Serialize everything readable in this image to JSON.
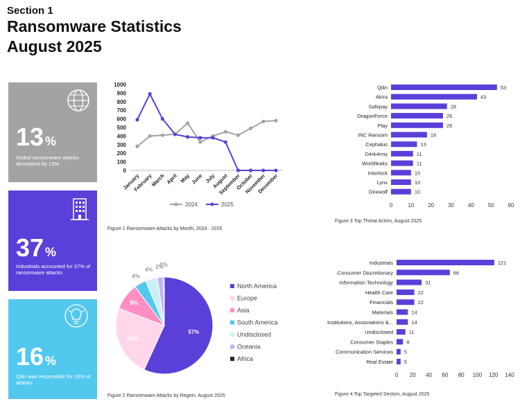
{
  "header": {
    "section": "Section 1",
    "title_line1": "Ransomware Statistics",
    "title_line2": "August 2025"
  },
  "cards": [
    {
      "value": "13",
      "unit": "%",
      "caption": "Global ransomware attacks decreased by 13%",
      "color": "#a3a3a3",
      "icon": "globe-icon"
    },
    {
      "value": "37",
      "unit": "%",
      "caption": "Industrials accounted for 37% of ransomware attacks",
      "color": "#5b3fd9",
      "icon": "building-icon"
    },
    {
      "value": "16",
      "unit": "%",
      "caption": "Qilin was responsible for 16% of attacks",
      "color": "#52c8ee",
      "icon": "lightbulb-icon"
    }
  ],
  "captions": {
    "fig1": "Figure 1 Ransomware Attacks by Month, 2024 - 2025",
    "fig2": "Figure 2 Ransomware Attacks by Region, August 2025",
    "fig3": "Figure 3 Top Threat Actors, August 2025",
    "fig4": "Figure 4 Top Targeted Sectors, August 2025"
  },
  "chart_data": [
    {
      "type": "line",
      "categories": [
        "January",
        "February",
        "March",
        "April",
        "May",
        "June",
        "July",
        "August",
        "September",
        "October",
        "November",
        "December"
      ],
      "series": [
        {
          "name": "2024",
          "color": "#a3a3a3",
          "values": [
            280,
            400,
            410,
            420,
            550,
            330,
            400,
            450,
            410,
            490,
            570,
            580
          ]
        },
        {
          "name": "2025",
          "color": "#5b3fd9",
          "values": [
            590,
            890,
            600,
            420,
            390,
            380,
            380,
            330,
            0,
            0,
            0,
            0
          ]
        }
      ],
      "yticks": [
        0,
        100,
        200,
        300,
        400,
        500,
        600,
        700,
        800,
        900,
        1000
      ],
      "ylim": [
        0,
        1000
      ],
      "legend": "bottom"
    },
    {
      "type": "pie",
      "slices": [
        {
          "name": "North America",
          "value": 57,
          "label": "57%",
          "color": "#5b3fd9"
        },
        {
          "name": "Europe",
          "value": 24,
          "label": "24%",
          "color": "#ffd6ea"
        },
        {
          "name": "Asia",
          "value": 9,
          "label": "9%",
          "color": "#ff8fc3"
        },
        {
          "name": "South America",
          "value": 4,
          "label": "4%",
          "color": "#52c8ee"
        },
        {
          "name": "Undisclosed",
          "value": 4,
          "label": "4%",
          "color": "#cdeef9"
        },
        {
          "name": "Oceania",
          "value": 2,
          "label": "2%",
          "color": "#c2b4f2"
        },
        {
          "name": "Africa",
          "value": 0.3,
          "label": "0%",
          "color": "#2a2a2a"
        }
      ],
      "legend": "right"
    },
    {
      "type": "bar",
      "orientation": "horizontal",
      "color": "#5b3fd9",
      "categories": [
        "Qilin",
        "Akira",
        "Safepay",
        "DragonForce",
        "Play",
        "INC Ransom",
        "Cephalus",
        "D4rk4rmy",
        "Worldleaks",
        "Interlock",
        "Lynx",
        "Direwolf"
      ],
      "values": [
        53,
        43,
        28,
        26,
        26,
        18,
        13,
        11,
        11,
        10,
        10,
        10
      ],
      "xticks": [
        0,
        10,
        20,
        30,
        40,
        50,
        60
      ],
      "xlim": [
        0,
        60
      ]
    },
    {
      "type": "bar",
      "orientation": "horizontal",
      "color": "#5b3fd9",
      "categories": [
        "Industrials",
        "Consumer Discretionary",
        "Information Technology",
        "Health Care",
        "Financials",
        "Materials",
        "Institutions, Associations &...",
        "Undisclosed",
        "Consumer Staples",
        "Communication Services",
        "Real Estate"
      ],
      "values": [
        121,
        66,
        31,
        22,
        22,
        14,
        14,
        11,
        8,
        5,
        5
      ],
      "xticks": [
        0,
        20,
        40,
        60,
        80,
        100,
        120,
        140
      ],
      "xlim": [
        0,
        140
      ]
    }
  ]
}
